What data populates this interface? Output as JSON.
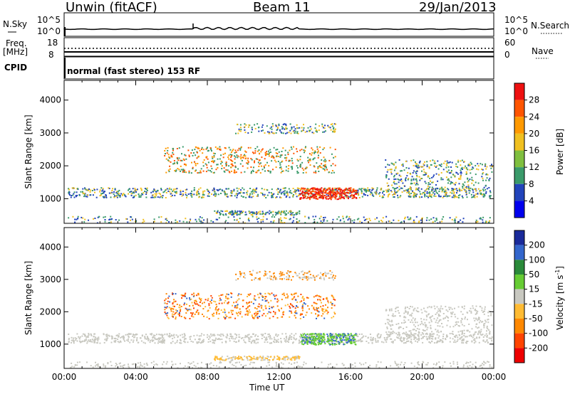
{
  "header": {
    "site": "Unwin (fitACF)",
    "beam": "Beam 11",
    "date": "29/Jan/2013"
  },
  "sky_panel": {
    "label": "N.Sky",
    "right_label": "N.Search",
    "ticks": [
      "10^5",
      "10^0"
    ]
  },
  "freq_panel": {
    "label": "Freq.",
    "unit": "[MHz]",
    "ticks": [
      "18",
      "8"
    ],
    "right_label": "Nave",
    "right_ticks": [
      "60",
      "0"
    ]
  },
  "cpid": {
    "label": "CPID",
    "value": "normal (fast stereo) 153 RF"
  },
  "chart_data": [
    {
      "type": "heatmap",
      "name": "power",
      "ylabel": "Slant Range [km]",
      "yticks": [
        "4000",
        "3000",
        "2000",
        "1000"
      ],
      "ylim": [
        250,
        4600
      ],
      "colorbar": {
        "label": "Power [dB]",
        "ticks": [
          "28",
          "24",
          "20",
          "16",
          "12",
          "8",
          "4"
        ],
        "colors": [
          "#ee1111",
          "#ff5500",
          "#ff9900",
          "#f0c020",
          "#7fbf3f",
          "#3a9a6a",
          "#2244bb",
          "#0000ee"
        ]
      }
    },
    {
      "type": "heatmap",
      "name": "velocity",
      "ylabel": "Slant Range [km]",
      "yticks": [
        "4000",
        "3000",
        "2000",
        "1000"
      ],
      "ylim": [
        250,
        4600
      ],
      "colorbar": {
        "label": "Velocity [m s",
        "unit_sup": "-1",
        "ticks": [
          "200",
          "100",
          "50",
          "15",
          "-15",
          "-50",
          "-100",
          "-200"
        ],
        "colors": [
          "#1a2a9a",
          "#3366cc",
          "#2a8a3a",
          "#66cc33",
          "#c8c8c0",
          "#ffbb33",
          "#ff8800",
          "#ff4400",
          "#ee0000"
        ]
      }
    }
  ],
  "xaxis": {
    "label": "Time UT",
    "ticks": [
      "00:00",
      "04:00",
      "08:00",
      "12:00",
      "16:00",
      "20:00",
      "00:00"
    ]
  }
}
